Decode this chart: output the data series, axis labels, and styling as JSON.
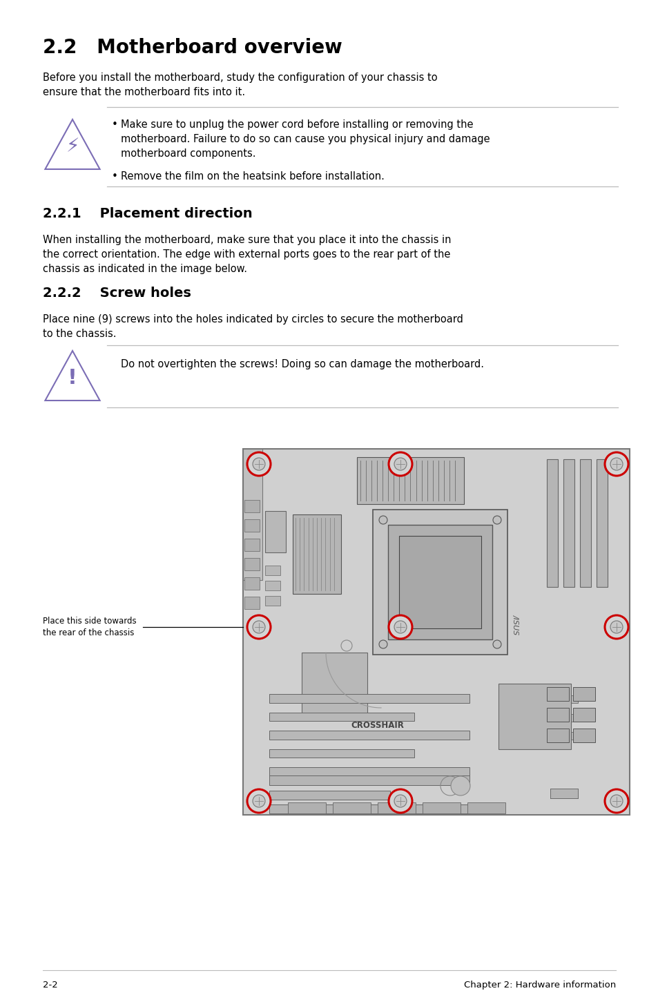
{
  "title": "2.2   Motherboard overview",
  "title_fontsize": 20,
  "body_fontsize": 10.5,
  "section_221": "2.2.1    Placement direction",
  "section_222": "2.2.2    Screw holes",
  "section_fontsize": 14,
  "intro_text": "Before you install the motherboard, study the configuration of your chassis to\nensure that the motherboard fits into it.",
  "warning_text1": "Make sure to unplug the power cord before installing or removing the\nmotherboard. Failure to do so can cause you physical injury and damage\nmotherboard components.",
  "warning_text2": "Remove the film on the heatsink before installation.",
  "placement_text": "When installing the motherboard, make sure that you place it into the chassis in\nthe correct orientation. The edge with external ports goes to the rear part of the\nchassis as indicated in the image below.",
  "screw_text": "Place nine (9) screws into the holes indicated by circles to secure the motherboard\nto the chassis.",
  "caution_text": "Do not overtighten the screws! Doing so can damage the motherboard.",
  "side_label": "Place this side towards\nthe rear of the chassis",
  "footer_left": "2-2",
  "footer_right": "Chapter 2: Hardware information",
  "bg_color": "#ffffff",
  "text_color": "#000000",
  "icon_color": "#7b6db5",
  "screw_color": "#cc0000",
  "line_color": "#bbbbbb",
  "board_color": "#d0d0d0",
  "board_dark": "#b8b8b8",
  "board_border": "#777777"
}
